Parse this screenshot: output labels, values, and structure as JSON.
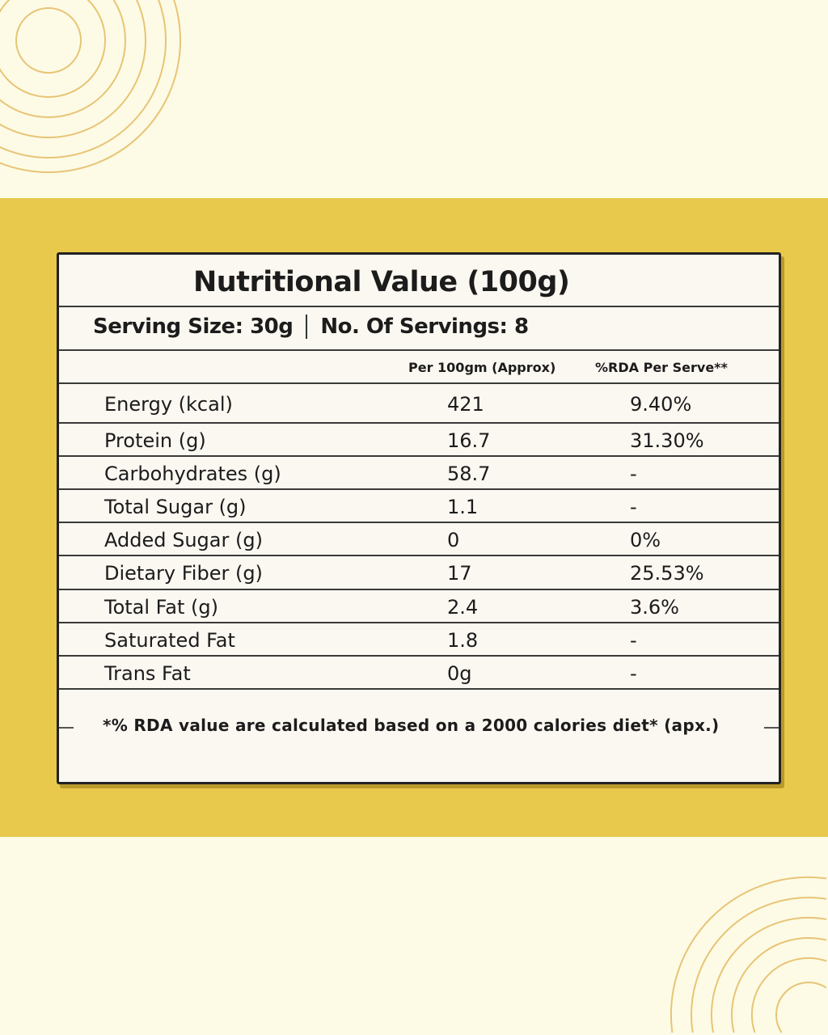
{
  "colors": {
    "background": "#fdfbe5",
    "band": "#e8c94c",
    "card": "#fbf7f1",
    "deco_rings": "#e8c477"
  },
  "title": "Nutritional Value (100g)",
  "serving": {
    "size": "Serving Size: 30g",
    "count": "No. Of Servings: 8"
  },
  "columns": {
    "per100": "Per 100gm (Approx)",
    "rda": "%RDA Per Serve**"
  },
  "rows": [
    {
      "name": "Energy (kcal)",
      "per100": "421",
      "rda": "9.40%"
    },
    {
      "name": "Protein (g)",
      "per100": "16.7",
      "rda": "31.30%"
    },
    {
      "name": "Carbohydrates (g)",
      "per100": "58.7",
      "rda": "-"
    },
    {
      "name": "Total Sugar (g)",
      "per100": "1.1",
      "rda": "-"
    },
    {
      "name": "Added Sugar (g)",
      "per100": "0",
      "rda": "0%"
    },
    {
      "name": "Dietary Fiber (g)",
      "per100": "17",
      "rda": "25.53%"
    },
    {
      "name": "Total Fat (g)",
      "per100": "2.4",
      "rda": "3.6%"
    },
    {
      "name": "Saturated Fat",
      "per100": "1.8",
      "rda": "-"
    },
    {
      "name": "Trans Fat",
      "per100": "0g",
      "rda": "-"
    }
  ],
  "footnote": "*% RDA value are calculated based on a 2000 calories diet* (apx.)"
}
